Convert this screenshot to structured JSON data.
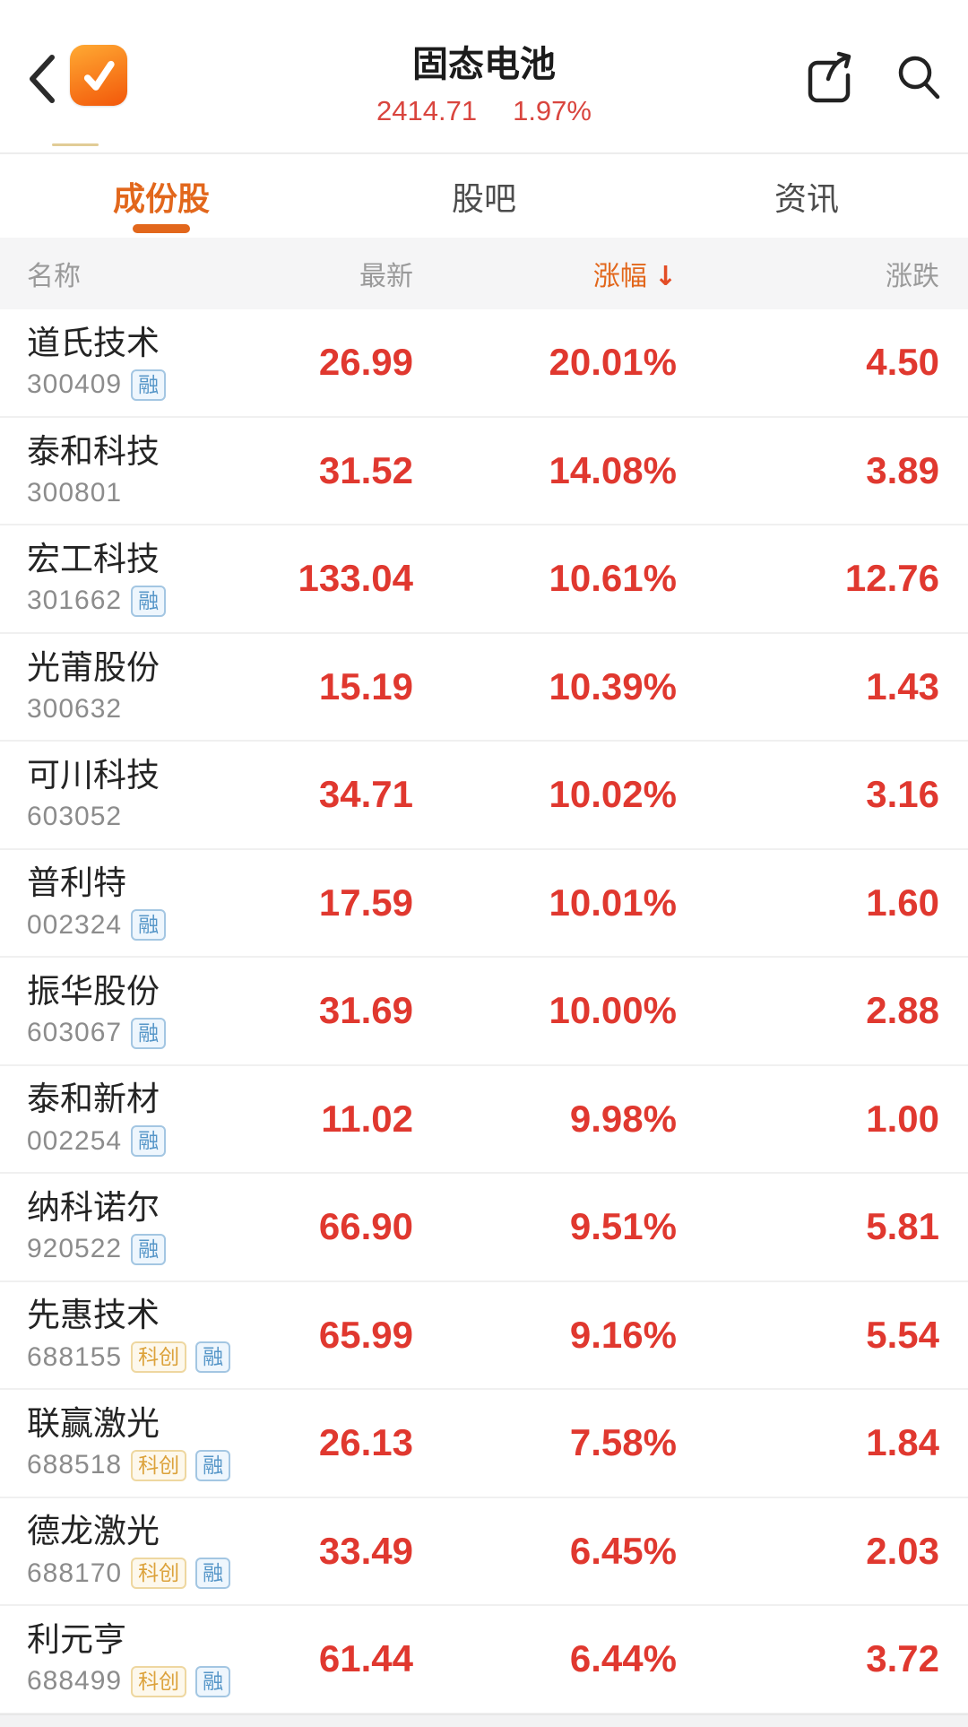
{
  "nav": {
    "title": "固态电池",
    "index_value": "2414.71",
    "index_change": "1.97%",
    "back_icon": "chevron-left",
    "app_icon": "orange-checkmark-logo",
    "share_icon": "share-box-arrow",
    "search_icon": "magnifier"
  },
  "tabs": [
    {
      "label": "成份股",
      "active": true
    },
    {
      "label": "股吧",
      "active": false
    },
    {
      "label": "资讯",
      "active": false
    }
  ],
  "table": {
    "columns": {
      "name": "名称",
      "latest": "最新",
      "change_pct": "涨幅",
      "change": "涨跌"
    },
    "sort_arrow": "↓",
    "rows": [
      {
        "name": "道氏技术",
        "code": "300409",
        "badges": [
          {
            "label": "融",
            "type": "rong"
          }
        ],
        "latest": "26.99",
        "change_pct": "20.01%",
        "change": "4.50"
      },
      {
        "name": "泰和科技",
        "code": "300801",
        "badges": [],
        "latest": "31.52",
        "change_pct": "14.08%",
        "change": "3.89"
      },
      {
        "name": "宏工科技",
        "code": "301662",
        "badges": [
          {
            "label": "融",
            "type": "rong"
          }
        ],
        "latest": "133.04",
        "change_pct": "10.61%",
        "change": "12.76"
      },
      {
        "name": "光莆股份",
        "code": "300632",
        "badges": [],
        "latest": "15.19",
        "change_pct": "10.39%",
        "change": "1.43"
      },
      {
        "name": "可川科技",
        "code": "603052",
        "badges": [],
        "latest": "34.71",
        "change_pct": "10.02%",
        "change": "3.16"
      },
      {
        "name": "普利特",
        "code": "002324",
        "badges": [
          {
            "label": "融",
            "type": "rong"
          }
        ],
        "latest": "17.59",
        "change_pct": "10.01%",
        "change": "1.60"
      },
      {
        "name": "振华股份",
        "code": "603067",
        "badges": [
          {
            "label": "融",
            "type": "rong"
          }
        ],
        "latest": "31.69",
        "change_pct": "10.00%",
        "change": "2.88"
      },
      {
        "name": "泰和新材",
        "code": "002254",
        "badges": [
          {
            "label": "融",
            "type": "rong"
          }
        ],
        "latest": "11.02",
        "change_pct": "9.98%",
        "change": "1.00"
      },
      {
        "name": "纳科诺尔",
        "code": "920522",
        "badges": [
          {
            "label": "融",
            "type": "rong"
          }
        ],
        "latest": "66.90",
        "change_pct": "9.51%",
        "change": "5.81"
      },
      {
        "name": "先惠技术",
        "code": "688155",
        "badges": [
          {
            "label": "科创",
            "type": "kc"
          },
          {
            "label": "融",
            "type": "rong"
          }
        ],
        "latest": "65.99",
        "change_pct": "9.16%",
        "change": "5.54"
      },
      {
        "name": "联赢激光",
        "code": "688518",
        "badges": [
          {
            "label": "科创",
            "type": "kc"
          },
          {
            "label": "融",
            "type": "rong"
          }
        ],
        "latest": "26.13",
        "change_pct": "7.58%",
        "change": "1.84"
      },
      {
        "name": "德龙激光",
        "code": "688170",
        "badges": [
          {
            "label": "科创",
            "type": "kc"
          },
          {
            "label": "融",
            "type": "rong"
          }
        ],
        "latest": "33.49",
        "change_pct": "6.45%",
        "change": "2.03"
      },
      {
        "name": "利元亨",
        "code": "688499",
        "badges": [
          {
            "label": "科创",
            "type": "kc"
          },
          {
            "label": "融",
            "type": "rong"
          }
        ],
        "latest": "61.44",
        "change_pct": "6.44%",
        "change": "3.72"
      }
    ]
  },
  "colors": {
    "accent": "#e2671c",
    "number-red": "#e0382f",
    "index-red": "#d9453e",
    "sort-arrow": "#e34d26",
    "name-text": "#242424",
    "code-text": "#8c8c8c",
    "header-text": "#9a9a9a",
    "tab-inactive": "#4c4c4c",
    "header-bg": "#f5f5f6",
    "separator": "#f0f0f0",
    "badge-rong-text": "#5696c8",
    "badge-rong-border": "#a3c6e2",
    "badge-rong-bg": "#eef6fd",
    "badge-kc-text": "#dca23b",
    "badge-kc-border": "#eed7a0",
    "badge-kc-bg": "#fdf8ec",
    "app-icon-top": "#ffaa33",
    "app-icon-bottom": "#f2570a"
  }
}
